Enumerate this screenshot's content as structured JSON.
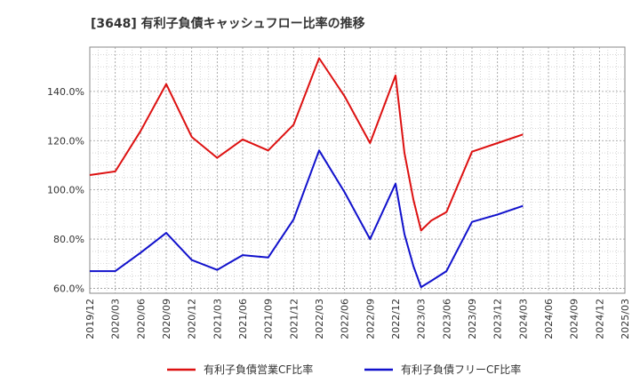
{
  "chart_data": {
    "type": "line",
    "title": "[3648]  有利子負債キャッシュフロー比率の推移",
    "xlabel": "",
    "ylabel": "",
    "ylim": [
      58,
      158
    ],
    "y_ticks": [
      60,
      80,
      100,
      120,
      140
    ],
    "y_tick_labels": [
      "60.0%",
      "80.0%",
      "100.0%",
      "120.0%",
      "140.0%"
    ],
    "x_ticks": [
      "2019/12",
      "2020/03",
      "2020/06",
      "2020/09",
      "2020/12",
      "2021/03",
      "2021/06",
      "2021/09",
      "2021/12",
      "2022/03",
      "2022/06",
      "2022/09",
      "2022/12",
      "2023/03",
      "2023/06",
      "2023/09",
      "2023/12",
      "2024/03",
      "2024/06",
      "2024/09",
      "2024/12",
      "2025/03"
    ],
    "grid": true,
    "legend_position": "bottom",
    "series": [
      {
        "name": "有利子負債営業CF比率",
        "color": "#dd1111",
        "points": [
          [
            0,
            106
          ],
          [
            1,
            107.5
          ],
          [
            2,
            124
          ],
          [
            3,
            143
          ],
          [
            4,
            121.5
          ],
          [
            5,
            113
          ],
          [
            6,
            120.5
          ],
          [
            7,
            116
          ],
          [
            8,
            126.5
          ],
          [
            9,
            153.5
          ],
          [
            10,
            138
          ],
          [
            11,
            119
          ],
          [
            12,
            146.5
          ],
          [
            12.35,
            115
          ],
          [
            12.7,
            96
          ],
          [
            13,
            83.5
          ],
          [
            13.4,
            87.5
          ],
          [
            14,
            91
          ],
          [
            15,
            115.5
          ],
          [
            16,
            119
          ],
          [
            17,
            122.5
          ]
        ]
      },
      {
        "name": "有利子負債フリーCF比率",
        "color": "#1111cc",
        "points": [
          [
            0,
            67
          ],
          [
            1,
            67
          ],
          [
            2,
            74.5
          ],
          [
            3,
            82.5
          ],
          [
            4,
            71.5
          ],
          [
            5,
            67.5
          ],
          [
            6,
            73.5
          ],
          [
            7,
            72.5
          ],
          [
            8,
            88
          ],
          [
            9,
            116
          ],
          [
            10,
            99
          ],
          [
            11,
            80
          ],
          [
            12,
            102.5
          ],
          [
            12.35,
            82
          ],
          [
            12.7,
            69
          ],
          [
            13,
            60.5
          ],
          [
            13.4,
            63
          ],
          [
            14,
            67
          ],
          [
            15,
            87
          ],
          [
            16,
            90
          ],
          [
            17,
            93.5
          ]
        ]
      }
    ]
  }
}
